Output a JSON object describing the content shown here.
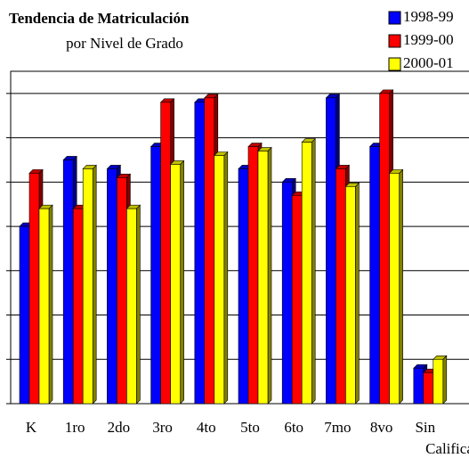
{
  "chart_data": {
    "type": "bar3d",
    "title": "Tendencia de Matriculación",
    "subtitle": "por Nivel de Grado",
    "categories": [
      "K",
      "1ro",
      "2do",
      "3ro",
      "4to",
      "5to",
      "6to",
      "7mo",
      "8vo",
      "Sin Calificar"
    ],
    "series": [
      {
        "name": "1998-99",
        "color": "#0000ff",
        "values": [
          4.0,
          5.5,
          5.3,
          5.8,
          6.8,
          5.3,
          5.0,
          6.9,
          5.8,
          0.8
        ]
      },
      {
        "name": "1999-00",
        "color": "#ff0000",
        "values": [
          5.2,
          4.4,
          5.1,
          6.8,
          6.9,
          5.8,
          4.7,
          5.3,
          7.0,
          0.7
        ]
      },
      {
        "name": "2000-01",
        "color": "#ffff00",
        "values": [
          4.4,
          5.3,
          4.4,
          5.4,
          5.6,
          5.7,
          5.9,
          4.9,
          5.2,
          1.0
        ]
      }
    ],
    "ylim": [
      0,
      7.5
    ],
    "yticks": [
      0,
      1,
      2,
      3,
      4,
      5,
      6,
      7
    ],
    "grid": true
  }
}
